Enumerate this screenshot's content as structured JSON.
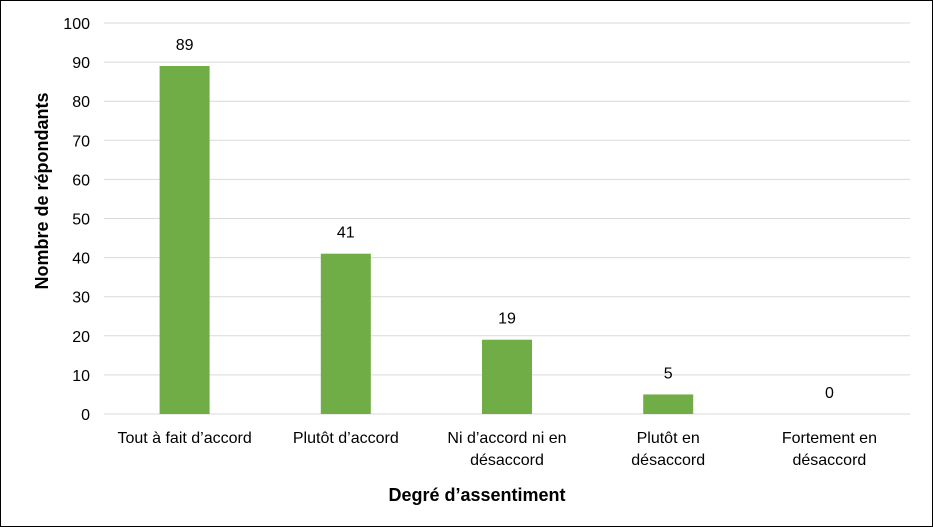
{
  "chart_data": {
    "type": "bar",
    "categories": [
      [
        "Tout à fait d’accord"
      ],
      [
        "Plutôt d’accord"
      ],
      [
        "Ni d’accord ni en",
        "désaccord"
      ],
      [
        "Plutôt en",
        "désaccord"
      ],
      [
        "Fortement en",
        "désaccord"
      ]
    ],
    "values": [
      89,
      41,
      19,
      5,
      0
    ],
    "xlabel": "Degré d’assentiment",
    "ylabel": "Nombre de répondants",
    "ylim": [
      0,
      100
    ],
    "yticks": [
      0,
      10,
      20,
      30,
      40,
      50,
      60,
      70,
      80,
      90,
      100
    ],
    "bar_color": "#70ad47",
    "grid": true,
    "data_labels": true
  }
}
